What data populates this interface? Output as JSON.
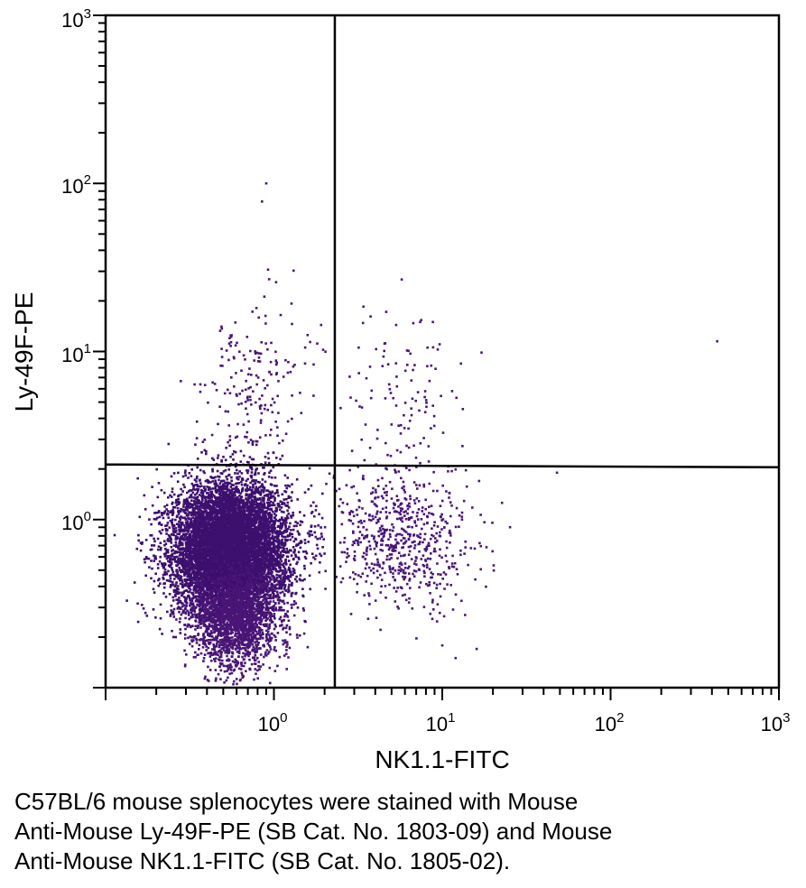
{
  "chart_data": {
    "type": "scatter",
    "xlabel": "NK1.1-FITC",
    "ylabel": "Ly-49F-PE",
    "xscale": "log",
    "yscale": "log",
    "xlim": [
      0.1,
      1000
    ],
    "ylim": [
      0.1,
      1000
    ],
    "x_ticks": [
      {
        "base": "10",
        "exp": "0",
        "value": 1
      },
      {
        "base": "10",
        "exp": "1",
        "value": 10
      },
      {
        "base": "10",
        "exp": "2",
        "value": 100
      },
      {
        "base": "10",
        "exp": "3",
        "value": 1000
      }
    ],
    "y_ticks": [
      {
        "base": "10",
        "exp": "0",
        "value": 1
      },
      {
        "base": "10",
        "exp": "1",
        "value": 10
      },
      {
        "base": "10",
        "exp": "2",
        "value": 100
      },
      {
        "base": "10",
        "exp": "3",
        "value": 1000
      }
    ],
    "quadrant_gates": {
      "x": 2.3,
      "y": 2.1
    },
    "point_color": "#4a1577",
    "dense_color": "#3d0f6e",
    "populations": [
      {
        "description": "NK1.1- Ly-49F- main population",
        "center": [
          0.55,
          0.65
        ],
        "spread_log": [
          0.17,
          0.2
        ],
        "count": 9000
      },
      {
        "description": "NK1.1- Ly-49F- low tail",
        "center": [
          0.6,
          0.25
        ],
        "spread_log": [
          0.12,
          0.15
        ],
        "count": 1600
      },
      {
        "description": "NK1.1+ Ly-49F-",
        "center": [
          5.5,
          0.75
        ],
        "spread_log": [
          0.22,
          0.2
        ],
        "count": 650
      },
      {
        "description": "NK1.1- Ly-49F+",
        "center": [
          0.75,
          6.5
        ],
        "spread_log": [
          0.15,
          0.25
        ],
        "count": 190
      },
      {
        "description": "NK1.1+ Ly-49F+",
        "center": [
          6.0,
          5.5
        ],
        "spread_log": [
          0.2,
          0.25
        ],
        "count": 110
      }
    ],
    "outliers": [
      [
        0.9,
        100
      ],
      [
        0.85,
        78
      ],
      [
        430,
        11.5
      ],
      [
        48,
        1.9
      ],
      [
        12,
        0.15
      ],
      [
        16,
        0.17
      ]
    ]
  },
  "caption": {
    "lines": [
      "C57BL/6 mouse splenocytes were stained with Mouse",
      "Anti-Mouse Ly-49F-PE (SB Cat. No. 1803-09) and Mouse",
      "Anti-Mouse NK1.1-FITC (SB Cat. No. 1805-02)."
    ]
  }
}
